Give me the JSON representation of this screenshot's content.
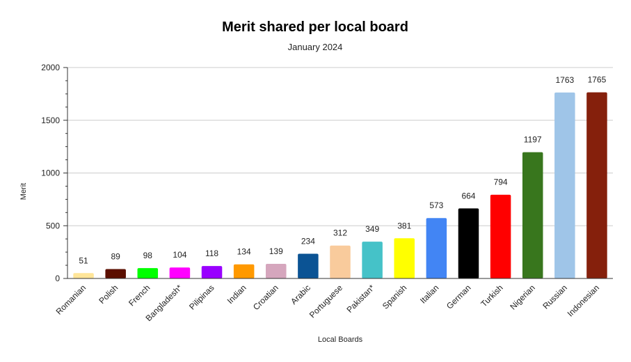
{
  "chart_data": {
    "type": "bar",
    "title": "Merit shared per local board",
    "subtitle": "January 2024",
    "xlabel": "Local Boards",
    "ylabel": "Merit",
    "ylim": [
      0,
      2000
    ],
    "yticks": [
      0,
      500,
      1000,
      1500,
      2000
    ],
    "grid": true,
    "legend": "none",
    "categories": [
      "Romanian",
      "Polish",
      "French",
      "Bangladesh*",
      "Pilipinas",
      "Indian",
      "Croatian",
      "Arabic",
      "Portuguese",
      "Pakistan*",
      "Spanish",
      "Italian",
      "German",
      "Turkish",
      "Nigerian",
      "Russian",
      "Indonesian"
    ],
    "values": [
      51,
      89,
      98,
      104,
      118,
      134,
      139,
      234,
      312,
      349,
      381,
      573,
      664,
      794,
      1197,
      1763,
      1765
    ],
    "colors": [
      "#ffe599",
      "#5b0f00",
      "#00ff00",
      "#ff00ff",
      "#9900ff",
      "#ff9900",
      "#d5a6bd",
      "#0b5394",
      "#f9cb9c",
      "#45c2c8",
      "#ffff00",
      "#4285f4",
      "#000000",
      "#ff0000",
      "#38761d",
      "#9fc5e8",
      "#85200c"
    ]
  }
}
